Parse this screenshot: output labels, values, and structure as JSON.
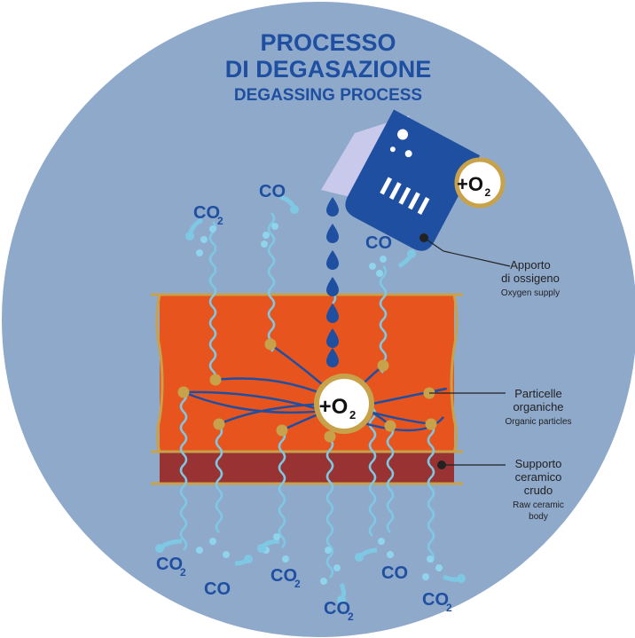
{
  "title": {
    "line1": "PROCESSO",
    "line2": "DI DEGASAZIONE",
    "subtitle": "DEGASSING PROCESS"
  },
  "oxygen_badges": [
    {
      "text": "+O",
      "sub": "2"
    },
    {
      "text": "+O",
      "sub": "2"
    }
  ],
  "gas_labels": [
    {
      "text": "CO",
      "sub": "2"
    },
    {
      "text": "CO"
    },
    {
      "text": "CO"
    },
    {
      "text": "CO",
      "sub": "2"
    },
    {
      "text": "CO"
    },
    {
      "text": "CO",
      "sub": "2"
    },
    {
      "text": "CO",
      "sub": "2"
    },
    {
      "text": "CO"
    },
    {
      "text": "CO",
      "sub": "2"
    }
  ],
  "callouts": [
    {
      "italian": [
        "Apporto",
        "di ossigeno"
      ],
      "english": [
        "Oxygen supply"
      ]
    },
    {
      "italian": [
        "Particelle",
        "organiche"
      ],
      "english": [
        "Organic particles"
      ]
    },
    {
      "italian": [
        "Supporto",
        "ceramico",
        "crudo"
      ],
      "english": [
        "Raw ceramic",
        "body"
      ]
    }
  ]
}
